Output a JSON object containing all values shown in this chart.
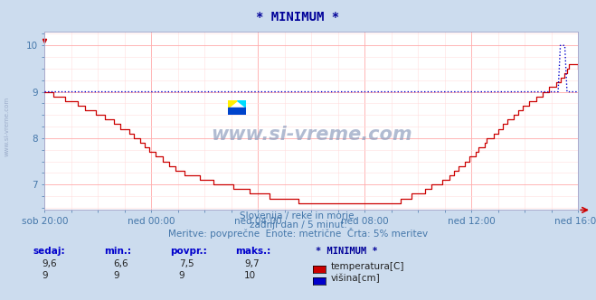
{
  "title": "* MINIMUM *",
  "bg_color": "#ccdcee",
  "plot_bg_color": "#ffffff",
  "grid_color_major": "#ffaaaa",
  "grid_color_minor": "#ffdddd",
  "xlabel_ticks": [
    "sob 20:00",
    "ned 00:00",
    "ned 04:00",
    "ned 08:00",
    "ned 12:00",
    "ned 16:00"
  ],
  "ylim": [
    6.45,
    10.3
  ],
  "yticks": [
    7,
    8,
    9,
    10
  ],
  "watermark": "www.si-vreme.com",
  "subtitle1": "Slovenija / reke in morje.",
  "subtitle2": "zadnji dan / 5 minut.",
  "subtitle3": "Meritve: povprečne  Enote: metrične  Črta: 5% meritev",
  "temp_color": "#cc0000",
  "visina_color": "#0000cc",
  "legend_title": "* MINIMUM *",
  "table_headers": [
    "sedaj:",
    "min.:",
    "povpr.:",
    "maks.:"
  ],
  "table_row1": [
    "9,6",
    "6,6",
    "7,5",
    "9,7"
  ],
  "table_row2": [
    "9",
    "9",
    "9",
    "10"
  ],
  "legend_label1": "temperatura[C]",
  "legend_label2": "višina[cm]",
  "text_color": "#4477aa",
  "title_color": "#000099"
}
